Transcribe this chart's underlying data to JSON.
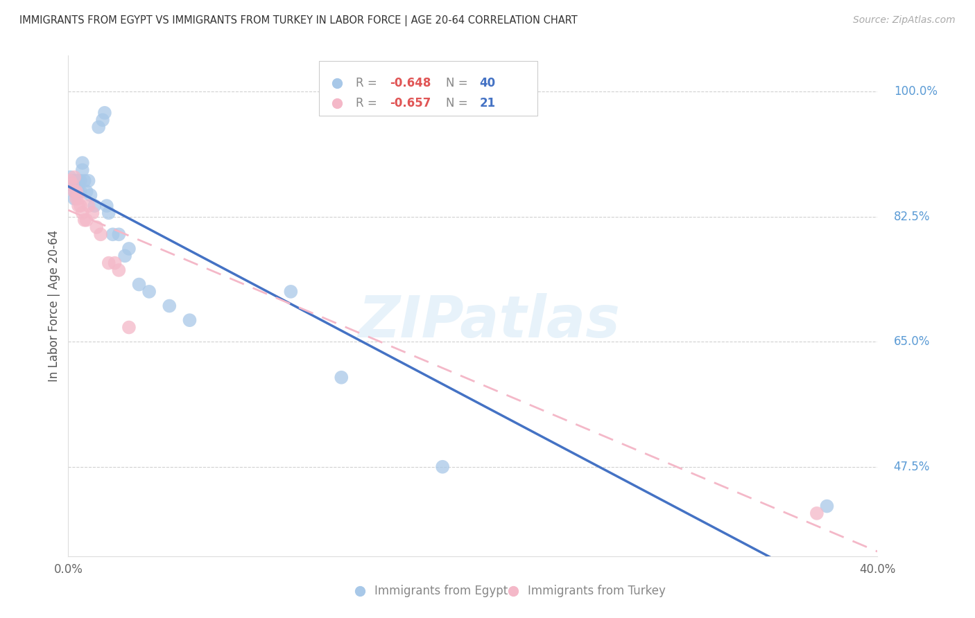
{
  "title": "IMMIGRANTS FROM EGYPT VS IMMIGRANTS FROM TURKEY IN LABOR FORCE | AGE 20-64 CORRELATION CHART",
  "source": "Source: ZipAtlas.com",
  "ylabel": "In Labor Force | Age 20-64",
  "egypt_R": -0.648,
  "egypt_N": 40,
  "turkey_R": -0.657,
  "turkey_N": 21,
  "egypt_color": "#a8c8e8",
  "turkey_color": "#f4b8c8",
  "egypt_line_color": "#4472c4",
  "turkey_line_color": "#f4b8c8",
  "xlim": [
    0.0,
    0.4
  ],
  "ylim": [
    0.35,
    1.05
  ],
  "yticks": [
    1.0,
    0.825,
    0.65,
    0.475
  ],
  "ytick_labels": [
    "100.0%",
    "82.5%",
    "65.0%",
    "47.5%"
  ],
  "xtick_positions": [
    0.0,
    0.05,
    0.1,
    0.15,
    0.2,
    0.25,
    0.3,
    0.35,
    0.4
  ],
  "xtick_labels": [
    "0.0%",
    "",
    "",
    "",
    "",
    "",
    "",
    "",
    "40.0%"
  ],
  "egypt_x": [
    0.001,
    0.001,
    0.002,
    0.002,
    0.003,
    0.003,
    0.003,
    0.003,
    0.004,
    0.004,
    0.004,
    0.005,
    0.005,
    0.005,
    0.006,
    0.006,
    0.007,
    0.007,
    0.008,
    0.009,
    0.01,
    0.011,
    0.013,
    0.015,
    0.017,
    0.018,
    0.019,
    0.02,
    0.022,
    0.025,
    0.028,
    0.03,
    0.035,
    0.04,
    0.05,
    0.06,
    0.11,
    0.135,
    0.185,
    0.375
  ],
  "egypt_y": [
    0.88,
    0.87,
    0.875,
    0.87,
    0.875,
    0.87,
    0.86,
    0.85,
    0.875,
    0.87,
    0.86,
    0.875,
    0.87,
    0.86,
    0.875,
    0.86,
    0.9,
    0.89,
    0.875,
    0.86,
    0.875,
    0.855,
    0.84,
    0.95,
    0.96,
    0.97,
    0.84,
    0.83,
    0.8,
    0.8,
    0.77,
    0.78,
    0.73,
    0.72,
    0.7,
    0.68,
    0.72,
    0.6,
    0.475,
    0.42
  ],
  "turkey_x": [
    0.001,
    0.002,
    0.003,
    0.003,
    0.004,
    0.004,
    0.005,
    0.005,
    0.006,
    0.007,
    0.008,
    0.009,
    0.01,
    0.012,
    0.014,
    0.016,
    0.02,
    0.023,
    0.025,
    0.03,
    0.37
  ],
  "turkey_y": [
    0.875,
    0.87,
    0.88,
    0.86,
    0.86,
    0.85,
    0.85,
    0.84,
    0.84,
    0.83,
    0.82,
    0.82,
    0.84,
    0.83,
    0.81,
    0.8,
    0.76,
    0.76,
    0.75,
    0.67,
    0.41
  ],
  "egypt_line_intercept": 0.878,
  "egypt_line_slope": -1.28,
  "turkey_line_intercept": 0.876,
  "turkey_line_slope": -1.25,
  "watermark_text": "ZIPatlas",
  "background_color": "#ffffff",
  "grid_color": "#d0d0d0",
  "legend_R_color": "#e05555",
  "legend_N_color": "#4472c4",
  "right_axis_color": "#5b9bd5"
}
